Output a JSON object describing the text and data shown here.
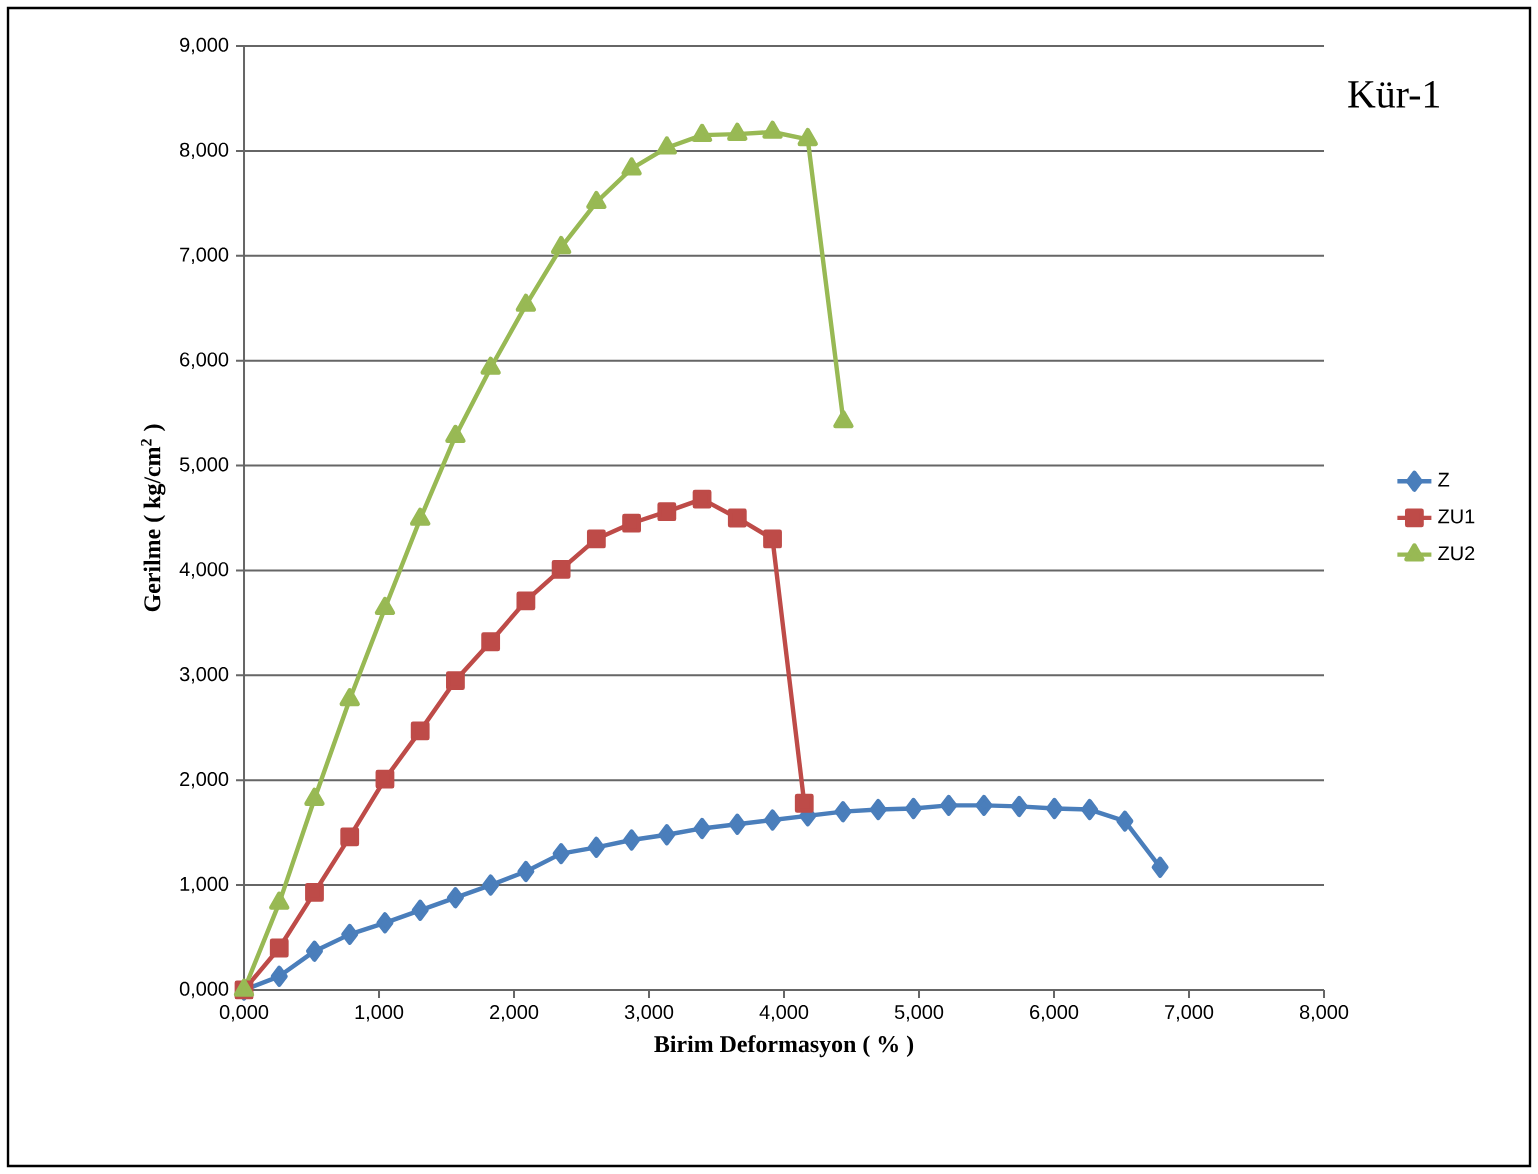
{
  "chart_data": {
    "type": "line",
    "title": "Kür-1",
    "xlabel": "Birim Deformasyon ( % )",
    "ylabel": "Gerilme ( kg/cm$^{2}$ )",
    "xlim": [
      0,
      8
    ],
    "ylim": [
      0,
      9
    ],
    "xticks": [
      {
        "value": 0,
        "label": "0,000"
      },
      {
        "value": 1,
        "label": "1,000"
      },
      {
        "value": 2,
        "label": "2,000"
      },
      {
        "value": 3,
        "label": "3,000"
      },
      {
        "value": 4,
        "label": "4,000"
      },
      {
        "value": 5,
        "label": "5,000"
      },
      {
        "value": 6,
        "label": "6,000"
      },
      {
        "value": 7,
        "label": "7,000"
      },
      {
        "value": 8,
        "label": "8,000"
      }
    ],
    "yticks": [
      {
        "value": 0,
        "label": "0,000"
      },
      {
        "value": 1,
        "label": "1,000"
      },
      {
        "value": 2,
        "label": "2,000"
      },
      {
        "value": 3,
        "label": "3,000"
      },
      {
        "value": 4,
        "label": "4,000"
      },
      {
        "value": 5,
        "label": "5,000"
      },
      {
        "value": 6,
        "label": "6,000"
      },
      {
        "value": 7,
        "label": "7,000"
      },
      {
        "value": 8,
        "label": "8,000"
      },
      {
        "value": 9,
        "label": "9,000"
      }
    ],
    "grid": "y",
    "legend": "right",
    "line_style": "solid",
    "series": [
      {
        "name": "Z",
        "color": "#4a7ebb",
        "marker": "diamond",
        "x": [
          0,
          0.261,
          0.522,
          0.783,
          1.044,
          1.305,
          1.566,
          1.827,
          2.088,
          2.349,
          2.61,
          2.871,
          3.132,
          3.393,
          3.654,
          3.915,
          4.176,
          4.437,
          4.698,
          4.959,
          5.22,
          5.481,
          5.742,
          6.003,
          6.264,
          6.525,
          6.786
        ],
        "values": [
          0,
          0.13,
          0.37,
          0.53,
          0.64,
          0.76,
          0.88,
          1.0,
          1.13,
          1.3,
          1.36,
          1.43,
          1.48,
          1.54,
          1.58,
          1.62,
          1.66,
          1.7,
          1.72,
          1.73,
          1.76,
          1.76,
          1.75,
          1.73,
          1.72,
          1.61,
          1.17
        ]
      },
      {
        "name": "ZU1",
        "color": "#be4b48",
        "marker": "square",
        "x": [
          0,
          0.261,
          0.522,
          0.783,
          1.044,
          1.305,
          1.566,
          1.827,
          2.088,
          2.349,
          2.61,
          2.871,
          3.132,
          3.393,
          3.654,
          3.915,
          4.15
        ],
        "values": [
          0,
          0.4,
          0.93,
          1.46,
          2.01,
          2.47,
          2.95,
          3.32,
          3.71,
          4.01,
          4.3,
          4.45,
          4.56,
          4.68,
          4.5,
          4.3,
          1.78
        ]
      },
      {
        "name": "ZU2",
        "color": "#98b954",
        "marker": "triangle",
        "x": [
          0,
          0.261,
          0.522,
          0.783,
          1.044,
          1.305,
          1.566,
          1.827,
          2.088,
          2.349,
          2.61,
          2.871,
          3.132,
          3.393,
          3.654,
          3.915,
          4.176,
          4.44
        ],
        "values": [
          0,
          0.83,
          1.82,
          2.77,
          3.64,
          4.49,
          5.28,
          5.93,
          6.53,
          7.08,
          7.51,
          7.83,
          8.03,
          8.15,
          8.16,
          8.18,
          8.11,
          5.42
        ]
      }
    ]
  }
}
